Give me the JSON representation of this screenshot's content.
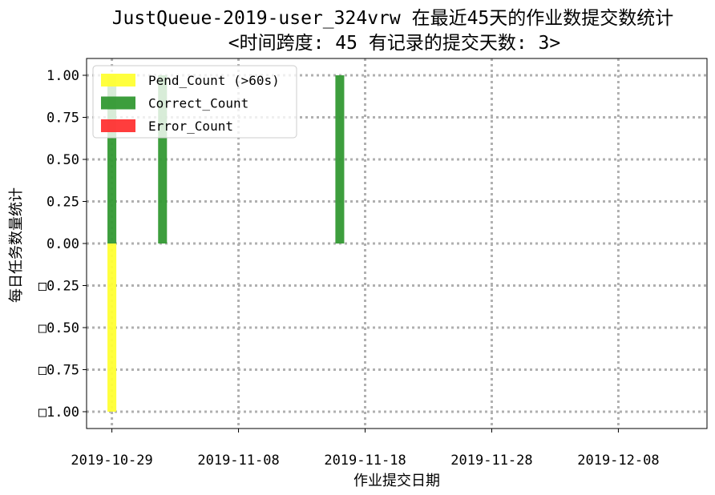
{
  "chart_data": {
    "type": "bar",
    "title": "JustQueue-2019-user_324vrw 在最近45天的作业数提交数统计",
    "subtitle": "<时间跨度: 45  有记录的提交天数: 3>",
    "xlabel": "作业提交日期",
    "ylabel": "每日任务数量统计",
    "x_ticks": [
      "2019-10-29",
      "2019-11-08",
      "2019-11-18",
      "2019-11-28",
      "2019-12-08"
    ],
    "y_ticks": [
      "□1.00",
      "□0.75",
      "□0.50",
      "□0.25",
      "0.00",
      "0.25",
      "0.50",
      "0.75",
      "1.00"
    ],
    "xlim": [
      "2019-10-27",
      "2019-12-15"
    ],
    "ylim": [
      -1.1,
      1.1
    ],
    "grid": true,
    "grid_style": "dotted",
    "legend_position": "top-left",
    "series": [
      {
        "name": "Pend_Count (>60s)",
        "color": "#ffff33",
        "points": [
          {
            "date": "2019-10-29",
            "value": -1
          }
        ]
      },
      {
        "name": "Correct_Count",
        "color": "#339933",
        "points": [
          {
            "date": "2019-10-29",
            "value": 1
          },
          {
            "date": "2019-11-02",
            "value": 1
          },
          {
            "date": "2019-11-16",
            "value": 1
          }
        ]
      },
      {
        "name": "Error_Count",
        "color": "#ff3333",
        "points": []
      }
    ]
  }
}
